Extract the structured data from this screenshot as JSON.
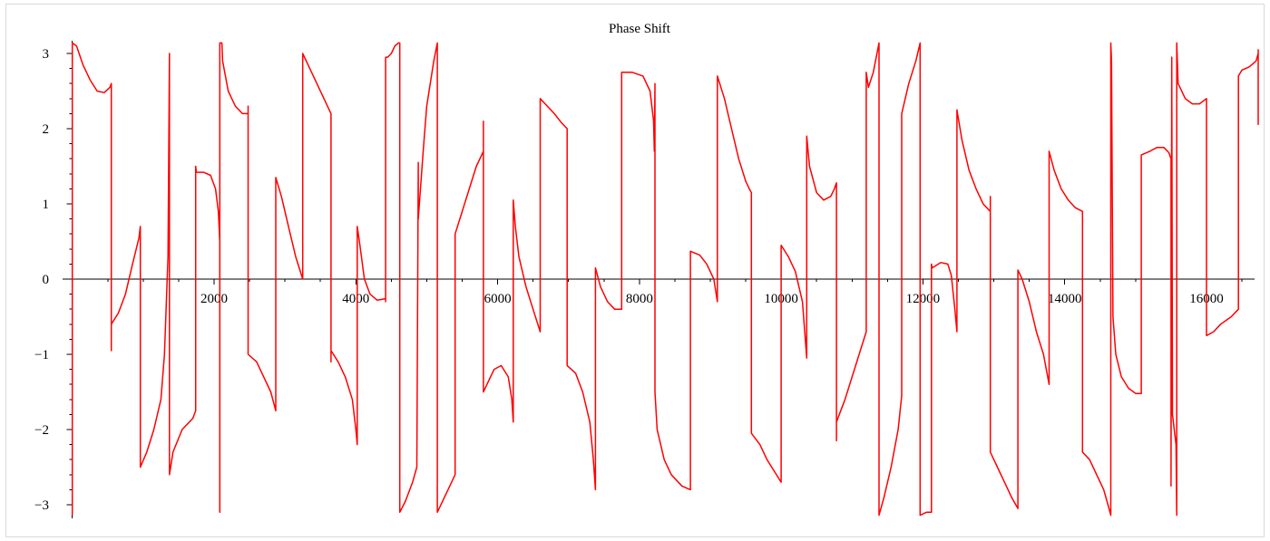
{
  "chart_data": {
    "type": "line",
    "title": "Phase Shift",
    "xlabel": "",
    "ylabel": "",
    "xlim": [
      0,
      16500
    ],
    "ylim": [
      -3.14,
      3.14
    ],
    "x_ticks": [
      {
        "value": 2000,
        "label": "2000"
      },
      {
        "value": 4000,
        "label": "4000"
      },
      {
        "value": 6000,
        "label": "6000"
      },
      {
        "value": 8000,
        "label": "8000"
      },
      {
        "value": 10000,
        "label": "10000"
      },
      {
        "value": 12000,
        "label": "12000"
      },
      {
        "value": 14000,
        "label": "14000"
      },
      {
        "value": 16000,
        "label": "16000"
      }
    ],
    "y_ticks": [
      {
        "value": 3,
        "label": "3"
      },
      {
        "value": 2,
        "label": "2"
      },
      {
        "value": 1,
        "label": "1"
      },
      {
        "value": 0,
        "label": "0"
      },
      {
        "value": -1,
        "label": "−1"
      },
      {
        "value": -2,
        "label": "−2"
      },
      {
        "value": -3,
        "label": "−3"
      }
    ],
    "grid": false,
    "color": "#ff0000",
    "series": [
      {
        "points": [
          [
            0,
            -3.14
          ],
          [
            0,
            3.14
          ],
          [
            60,
            3.1
          ],
          [
            150,
            2.85
          ],
          [
            250,
            2.65
          ],
          [
            350,
            2.5
          ],
          [
            450,
            2.48
          ],
          [
            530,
            2.55
          ],
          [
            550,
            2.6
          ],
          [
            550,
            -0.95
          ],
          [
            550,
            -0.6
          ],
          [
            650,
            -0.45
          ],
          [
            750,
            -0.2
          ],
          [
            850,
            0.2
          ],
          [
            940,
            0.55
          ],
          [
            960,
            0.7
          ],
          [
            960,
            -2.5
          ],
          [
            1050,
            -2.3
          ],
          [
            1150,
            -2.0
          ],
          [
            1250,
            -1.6
          ],
          [
            1300,
            -1.0
          ],
          [
            1350,
            0.3
          ],
          [
            1370,
            3.0
          ],
          [
            1370,
            -2.6
          ],
          [
            1420,
            -2.3
          ],
          [
            1550,
            -2.0
          ],
          [
            1700,
            -1.85
          ],
          [
            1740,
            -1.75
          ],
          [
            1740,
            1.5
          ],
          [
            1750,
            1.42
          ],
          [
            1850,
            1.42
          ],
          [
            1950,
            1.38
          ],
          [
            2020,
            1.2
          ],
          [
            2060,
            0.9
          ],
          [
            2080,
            0.5
          ],
          [
            2080,
            -3.1
          ],
          [
            2080,
            3.14
          ],
          [
            2110,
            3.14
          ],
          [
            2120,
            2.9
          ],
          [
            2200,
            2.5
          ],
          [
            2300,
            2.3
          ],
          [
            2400,
            2.2
          ],
          [
            2480,
            2.2
          ],
          [
            2480,
            2.3
          ],
          [
            2480,
            -1.0
          ],
          [
            2600,
            -1.1
          ],
          [
            2700,
            -1.3
          ],
          [
            2800,
            -1.5
          ],
          [
            2870,
            -1.75
          ],
          [
            2870,
            1.35
          ],
          [
            2950,
            1.1
          ],
          [
            3050,
            0.7
          ],
          [
            3150,
            0.3
          ],
          [
            3250,
            0.0
          ],
          [
            3250,
            3.0
          ],
          [
            3350,
            2.8
          ],
          [
            3450,
            2.6
          ],
          [
            3550,
            2.4
          ],
          [
            3650,
            2.2
          ],
          [
            3650,
            -1.1
          ],
          [
            3650,
            -0.95
          ],
          [
            3750,
            -1.1
          ],
          [
            3850,
            -1.3
          ],
          [
            3950,
            -1.6
          ],
          [
            4000,
            -2.0
          ],
          [
            4020,
            -2.2
          ],
          [
            4020,
            0.7
          ],
          [
            4050,
            0.5
          ],
          [
            4120,
            0.0
          ],
          [
            4200,
            -0.2
          ],
          [
            4300,
            -0.28
          ],
          [
            4420,
            -0.26
          ],
          [
            4420,
            -0.3
          ],
          [
            4420,
            2.95
          ],
          [
            4450,
            2.95
          ],
          [
            4500,
            3.0
          ],
          [
            4550,
            3.1
          ],
          [
            4600,
            3.14
          ],
          [
            4620,
            3.14
          ],
          [
            4620,
            -3.1
          ],
          [
            4700,
            -2.95
          ],
          [
            4800,
            -2.7
          ],
          [
            4860,
            -2.5
          ],
          [
            4880,
            1.55
          ],
          [
            4880,
            0.8
          ],
          [
            4950,
            1.7
          ],
          [
            5000,
            2.3
          ],
          [
            5100,
            2.9
          ],
          [
            5150,
            3.14
          ],
          [
            5150,
            -3.1
          ],
          [
            5300,
            -2.8
          ],
          [
            5400,
            -2.6
          ],
          [
            5400,
            0.6
          ],
          [
            5500,
            0.9
          ],
          [
            5600,
            1.2
          ],
          [
            5700,
            1.5
          ],
          [
            5800,
            1.7
          ],
          [
            5800,
            2.1
          ],
          [
            5800,
            -1.5
          ],
          [
            5850,
            -1.4
          ],
          [
            5950,
            -1.2
          ],
          [
            6050,
            -1.15
          ],
          [
            6150,
            -1.3
          ],
          [
            6200,
            -1.6
          ],
          [
            6220,
            -1.9
          ],
          [
            6220,
            1.05
          ],
          [
            6250,
            0.7
          ],
          [
            6300,
            0.3
          ],
          [
            6400,
            -0.1
          ],
          [
            6500,
            -0.4
          ],
          [
            6600,
            -0.7
          ],
          [
            6600,
            2.4
          ],
          [
            6700,
            2.3
          ],
          [
            6800,
            2.2
          ],
          [
            6900,
            2.08
          ],
          [
            6980,
            2.0
          ],
          [
            6980,
            -1.15
          ],
          [
            7100,
            -1.25
          ],
          [
            7200,
            -1.5
          ],
          [
            7300,
            -1.9
          ],
          [
            7350,
            -2.4
          ],
          [
            7380,
            -2.8
          ],
          [
            7380,
            0.15
          ],
          [
            7450,
            -0.1
          ],
          [
            7550,
            -0.3
          ],
          [
            7650,
            -0.4
          ],
          [
            7750,
            -0.4
          ],
          [
            7750,
            2.75
          ],
          [
            7900,
            2.75
          ],
          [
            8050,
            2.7
          ],
          [
            8150,
            2.5
          ],
          [
            8200,
            2.1
          ],
          [
            8210,
            1.7
          ],
          [
            8220,
            2.6
          ],
          [
            8220,
            -1.5
          ],
          [
            8250,
            -2.0
          ],
          [
            8350,
            -2.4
          ],
          [
            8450,
            -2.6
          ],
          [
            8600,
            -2.75
          ],
          [
            8720,
            -2.8
          ],
          [
            8720,
            0.37
          ],
          [
            8850,
            0.32
          ],
          [
            8950,
            0.2
          ],
          [
            9050,
            0.0
          ],
          [
            9100,
            -0.3
          ],
          [
            9100,
            2.7
          ],
          [
            9200,
            2.4
          ],
          [
            9300,
            2.0
          ],
          [
            9400,
            1.6
          ],
          [
            9500,
            1.3
          ],
          [
            9550,
            1.2
          ],
          [
            9580,
            1.15
          ],
          [
            9580,
            -2.05
          ],
          [
            9700,
            -2.2
          ],
          [
            9800,
            -2.4
          ],
          [
            9900,
            -2.55
          ],
          [
            10000,
            -2.7
          ],
          [
            10000,
            0.45
          ],
          [
            10100,
            0.3
          ],
          [
            10200,
            0.1
          ],
          [
            10300,
            -0.3
          ],
          [
            10360,
            -1.05
          ],
          [
            10360,
            1.9
          ],
          [
            10400,
            1.5
          ],
          [
            10500,
            1.15
          ],
          [
            10600,
            1.05
          ],
          [
            10700,
            1.1
          ],
          [
            10750,
            1.2
          ],
          [
            10780,
            1.28
          ],
          [
            10780,
            -2.15
          ],
          [
            10780,
            -1.9
          ],
          [
            10900,
            -1.6
          ],
          [
            11000,
            -1.3
          ],
          [
            11100,
            -1.0
          ],
          [
            11200,
            -0.7
          ],
          [
            11200,
            2.75
          ],
          [
            11230,
            2.55
          ],
          [
            11300,
            2.75
          ],
          [
            11380,
            3.14
          ],
          [
            11380,
            -3.14
          ],
          [
            11450,
            -2.9
          ],
          [
            11550,
            -2.5
          ],
          [
            11650,
            -2.0
          ],
          [
            11700,
            -1.55
          ],
          [
            11700,
            2.2
          ],
          [
            11800,
            2.6
          ],
          [
            11900,
            2.9
          ],
          [
            11960,
            3.14
          ],
          [
            11960,
            -3.14
          ],
          [
            12050,
            -3.1
          ],
          [
            12120,
            -3.1
          ],
          [
            12120,
            0.2
          ],
          [
            12130,
            0.15
          ],
          [
            12250,
            0.22
          ],
          [
            12350,
            0.2
          ],
          [
            12400,
            0.05
          ],
          [
            12450,
            -0.4
          ],
          [
            12480,
            -0.7
          ],
          [
            12480,
            2.25
          ],
          [
            12550,
            1.85
          ],
          [
            12650,
            1.45
          ],
          [
            12750,
            1.2
          ],
          [
            12850,
            1.0
          ],
          [
            12950,
            0.9
          ],
          [
            12950,
            1.1
          ],
          [
            12950,
            -2.3
          ],
          [
            13050,
            -2.5
          ],
          [
            13150,
            -2.7
          ],
          [
            13250,
            -2.9
          ],
          [
            13340,
            -3.05
          ],
          [
            13340,
            0.12
          ],
          [
            13400,
            0.0
          ],
          [
            13500,
            -0.3
          ],
          [
            13600,
            -0.7
          ],
          [
            13700,
            -1.0
          ],
          [
            13780,
            -1.4
          ],
          [
            13780,
            1.7
          ],
          [
            13850,
            1.45
          ],
          [
            13950,
            1.2
          ],
          [
            14050,
            1.05
          ],
          [
            14150,
            0.95
          ],
          [
            14250,
            0.9
          ],
          [
            14250,
            -2.3
          ],
          [
            14350,
            -2.4
          ],
          [
            14450,
            -2.6
          ],
          [
            14550,
            -2.8
          ],
          [
            14610,
            -3.0
          ],
          [
            14650,
            -3.14
          ],
          [
            14650,
            3.14
          ],
          [
            14660,
            2.9
          ],
          [
            14680,
            -0.5
          ],
          [
            14720,
            -1.0
          ],
          [
            14800,
            -1.3
          ],
          [
            14900,
            -1.45
          ],
          [
            15000,
            -1.52
          ],
          [
            15080,
            -1.52
          ],
          [
            15080,
            1.65
          ],
          [
            15200,
            1.7
          ],
          [
            15300,
            1.75
          ],
          [
            15400,
            1.75
          ],
          [
            15470,
            1.68
          ],
          [
            15500,
            1.6
          ],
          [
            15500,
            -2.75
          ],
          [
            15510,
            2.95
          ],
          [
            15520,
            -1.8
          ],
          [
            15570,
            -2.2
          ],
          [
            15580,
            -3.14
          ],
          [
            15580,
            3.14
          ],
          [
            15600,
            2.6
          ],
          [
            15700,
            2.4
          ],
          [
            15800,
            2.33
          ],
          [
            15900,
            2.33
          ],
          [
            16000,
            2.4
          ],
          [
            16000,
            -0.75
          ],
          [
            16100,
            -0.7
          ],
          [
            16200,
            -0.6
          ],
          [
            16350,
            -0.5
          ],
          [
            16450,
            -0.4
          ],
          [
            16450,
            2.7
          ],
          [
            16500,
            2.78
          ],
          [
            16600,
            2.82
          ],
          [
            16700,
            2.9
          ],
          [
            16800,
            3.0
          ],
          [
            16900,
            3.05
          ],
          [
            16950,
            3.0
          ],
          [
            16950,
            2.05
          ]
        ]
      }
    ]
  }
}
